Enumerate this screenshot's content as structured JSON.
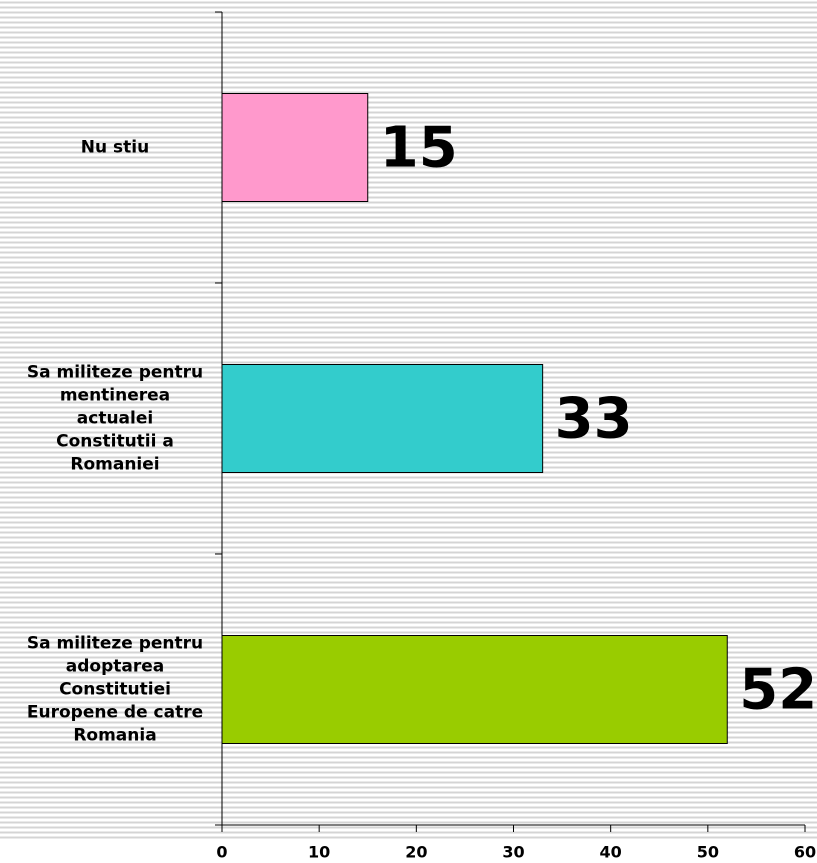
{
  "chart_data": {
    "type": "hbar",
    "categories": [
      "Nu stiu",
      "Sa militeze pentru mentinerea actualei Constitutii a Romaniei",
      "Sa militeze pentru adoptarea Constitutiei Europene de catre Romania"
    ],
    "values": [
      15,
      33,
      52
    ],
    "colors": [
      "#ff99cc",
      "#33cccc",
      "#99cc00"
    ],
    "xlim": [
      0,
      60
    ],
    "xticks": [
      0,
      10,
      20,
      30,
      40,
      50,
      60
    ]
  }
}
